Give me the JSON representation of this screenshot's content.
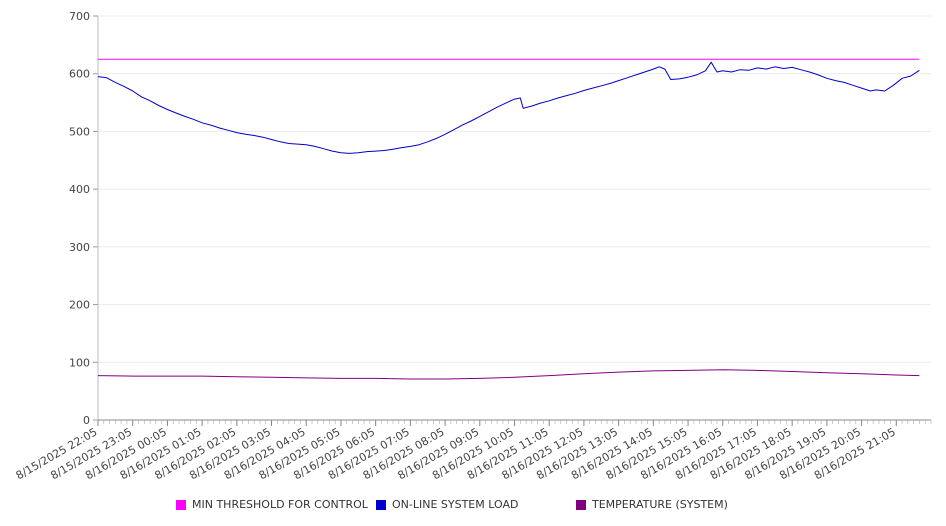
{
  "chart_data": {
    "type": "line",
    "title": "",
    "xlabel": "",
    "ylabel": "",
    "ylim": [
      0,
      700
    ],
    "yticks": [
      0,
      100,
      200,
      300,
      400,
      500,
      600,
      700
    ],
    "grid": true,
    "legend_position": "bottom",
    "x_start": "8/15/2025 22:05",
    "x_end": "8/16/2025 21:45",
    "x_tick_labels": [
      "8/15/2025 22:05",
      "8/15/2025 23:05",
      "8/16/2025 00:05",
      "8/16/2025 01:05",
      "8/16/2025 02:05",
      "8/16/2025 03:05",
      "8/16/2025 04:05",
      "8/16/2025 05:05",
      "8/16/2025 06:05",
      "8/16/2025 07:05",
      "8/16/2025 08:05",
      "8/16/2025 09:05",
      "8/16/2025 10:05",
      "8/16/2025 11:05",
      "8/16/2025 12:05",
      "8/16/2025 13:05",
      "8/16/2025 14:05",
      "8/16/2025 15:05",
      "8/16/2025 16:05",
      "8/16/2025 17:05",
      "8/16/2025 18:05",
      "8/16/2025 19:05",
      "8/16/2025 20:05",
      "8/16/2025 21:05"
    ],
    "series": [
      {
        "name": "MIN THRESHOLD FOR CONTROL",
        "color": "#ff00ff",
        "points": [
          [
            "8/15/2025 22:05",
            625
          ],
          [
            "8/16/2025 21:45",
            625
          ]
        ]
      },
      {
        "name": "ON-LINE SYSTEM LOAD",
        "color": "#0000cc",
        "points": [
          [
            "8/15/2025 22:05",
            595
          ],
          [
            "8/15/2025 22:20",
            593
          ],
          [
            "8/15/2025 22:35",
            585
          ],
          [
            "8/15/2025 22:50",
            578
          ],
          [
            "8/15/2025 23:05",
            570
          ],
          [
            "8/15/2025 23:20",
            560
          ],
          [
            "8/15/2025 23:35",
            553
          ],
          [
            "8/15/2025 23:50",
            545
          ],
          [
            "8/16/2025 00:05",
            538
          ],
          [
            "8/16/2025 00:20",
            532
          ],
          [
            "8/16/2025 00:35",
            526
          ],
          [
            "8/16/2025 00:50",
            521
          ],
          [
            "8/16/2025 01:05",
            515
          ],
          [
            "8/16/2025 01:20",
            511
          ],
          [
            "8/16/2025 01:35",
            506
          ],
          [
            "8/16/2025 01:50",
            502
          ],
          [
            "8/16/2025 02:05",
            498
          ],
          [
            "8/16/2025 02:20",
            495
          ],
          [
            "8/16/2025 02:35",
            493
          ],
          [
            "8/16/2025 02:50",
            490
          ],
          [
            "8/16/2025 03:05",
            486
          ],
          [
            "8/16/2025 03:20",
            482
          ],
          [
            "8/16/2025 03:35",
            479
          ],
          [
            "8/16/2025 03:50",
            478
          ],
          [
            "8/16/2025 04:05",
            477
          ],
          [
            "8/16/2025 04:20",
            474
          ],
          [
            "8/16/2025 04:35",
            470
          ],
          [
            "8/16/2025 04:50",
            466
          ],
          [
            "8/16/2025 05:05",
            463
          ],
          [
            "8/16/2025 05:20",
            462
          ],
          [
            "8/16/2025 05:35",
            463
          ],
          [
            "8/16/2025 05:50",
            465
          ],
          [
            "8/16/2025 06:05",
            466
          ],
          [
            "8/16/2025 06:20",
            467
          ],
          [
            "8/16/2025 06:35",
            469
          ],
          [
            "8/16/2025 06:50",
            472
          ],
          [
            "8/16/2025 07:05",
            474
          ],
          [
            "8/16/2025 07:20",
            477
          ],
          [
            "8/16/2025 07:35",
            482
          ],
          [
            "8/16/2025 07:50",
            488
          ],
          [
            "8/16/2025 08:05",
            495
          ],
          [
            "8/16/2025 08:20",
            503
          ],
          [
            "8/16/2025 08:35",
            511
          ],
          [
            "8/16/2025 08:50",
            518
          ],
          [
            "8/16/2025 09:05",
            526
          ],
          [
            "8/16/2025 09:20",
            534
          ],
          [
            "8/16/2025 09:35",
            542
          ],
          [
            "8/16/2025 09:50",
            549
          ],
          [
            "8/16/2025 10:05",
            556
          ],
          [
            "8/16/2025 10:15",
            558
          ],
          [
            "8/16/2025 10:20",
            540
          ],
          [
            "8/16/2025 10:35",
            544
          ],
          [
            "8/16/2025 10:50",
            549
          ],
          [
            "8/16/2025 11:05",
            553
          ],
          [
            "8/16/2025 11:20",
            558
          ],
          [
            "8/16/2025 11:35",
            562
          ],
          [
            "8/16/2025 11:50",
            566
          ],
          [
            "8/16/2025 12:05",
            571
          ],
          [
            "8/16/2025 12:20",
            575
          ],
          [
            "8/16/2025 12:35",
            579
          ],
          [
            "8/16/2025 12:50",
            583
          ],
          [
            "8/16/2025 13:05",
            588
          ],
          [
            "8/16/2025 13:20",
            593
          ],
          [
            "8/16/2025 13:35",
            598
          ],
          [
            "8/16/2025 13:50",
            603
          ],
          [
            "8/16/2025 14:05",
            608
          ],
          [
            "8/16/2025 14:15",
            612
          ],
          [
            "8/16/2025 14:25",
            608
          ],
          [
            "8/16/2025 14:35",
            590
          ],
          [
            "8/16/2025 14:50",
            591
          ],
          [
            "8/16/2025 15:05",
            594
          ],
          [
            "8/16/2025 15:20",
            598
          ],
          [
            "8/16/2025 15:35",
            605
          ],
          [
            "8/16/2025 15:45",
            620
          ],
          [
            "8/16/2025 15:55",
            603
          ],
          [
            "8/16/2025 16:05",
            605
          ],
          [
            "8/16/2025 16:20",
            603
          ],
          [
            "8/16/2025 16:35",
            607
          ],
          [
            "8/16/2025 16:50",
            606
          ],
          [
            "8/16/2025 17:05",
            610
          ],
          [
            "8/16/2025 17:20",
            608
          ],
          [
            "8/16/2025 17:35",
            612
          ],
          [
            "8/16/2025 17:50",
            609
          ],
          [
            "8/16/2025 18:05",
            611
          ],
          [
            "8/16/2025 18:20",
            607
          ],
          [
            "8/16/2025 18:35",
            603
          ],
          [
            "8/16/2025 18:50",
            598
          ],
          [
            "8/16/2025 19:05",
            592
          ],
          [
            "8/16/2025 19:20",
            588
          ],
          [
            "8/16/2025 19:35",
            585
          ],
          [
            "8/16/2025 19:50",
            580
          ],
          [
            "8/16/2025 20:05",
            575
          ],
          [
            "8/16/2025 20:20",
            570
          ],
          [
            "8/16/2025 20:30",
            572
          ],
          [
            "8/16/2025 20:45",
            570
          ],
          [
            "8/16/2025 21:00",
            580
          ],
          [
            "8/16/2025 21:15",
            592
          ],
          [
            "8/16/2025 21:30",
            596
          ],
          [
            "8/16/2025 21:45",
            606
          ]
        ]
      },
      {
        "name": "TEMPERATURE (SYSTEM)",
        "color": "#800080",
        "points": [
          [
            "8/15/2025 22:05",
            77
          ],
          [
            "8/15/2025 23:05",
            76
          ],
          [
            "8/16/2025 00:05",
            76
          ],
          [
            "8/16/2025 01:05",
            76
          ],
          [
            "8/16/2025 02:05",
            75
          ],
          [
            "8/16/2025 03:05",
            74
          ],
          [
            "8/16/2025 04:05",
            73
          ],
          [
            "8/16/2025 05:05",
            72
          ],
          [
            "8/16/2025 06:05",
            72
          ],
          [
            "8/16/2025 07:05",
            71
          ],
          [
            "8/16/2025 08:05",
            71
          ],
          [
            "8/16/2025 09:05",
            72
          ],
          [
            "8/16/2025 10:05",
            74
          ],
          [
            "8/16/2025 11:05",
            77
          ],
          [
            "8/16/2025 12:05",
            80
          ],
          [
            "8/16/2025 13:05",
            83
          ],
          [
            "8/16/2025 14:05",
            85
          ],
          [
            "8/16/2025 15:05",
            86
          ],
          [
            "8/16/2025 16:05",
            87
          ],
          [
            "8/16/2025 17:05",
            86
          ],
          [
            "8/16/2025 18:05",
            84
          ],
          [
            "8/16/2025 19:05",
            82
          ],
          [
            "8/16/2025 20:05",
            80
          ],
          [
            "8/16/2025 21:05",
            78
          ],
          [
            "8/16/2025 21:45",
            77
          ]
        ]
      }
    ]
  }
}
